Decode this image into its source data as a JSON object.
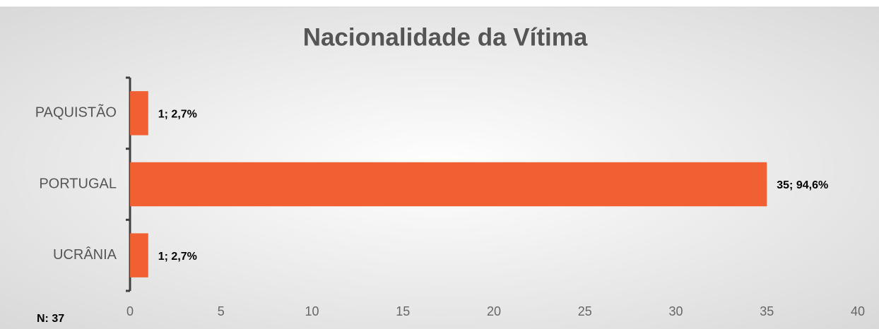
{
  "chart_data": {
    "type": "barh",
    "title": "Nacionalidade da Vítima",
    "categories": [
      "PAQUISTÃO",
      "PORTUGAL",
      "UCRÂNIA"
    ],
    "values": [
      1,
      35,
      1
    ],
    "value_labels": [
      "1; 2,7%",
      "35; 94,6%",
      "1; 2,7%"
    ],
    "color": "#f06032",
    "xlim": [
      0,
      40
    ],
    "xticks": [
      0,
      5,
      10,
      15,
      20,
      25,
      30,
      35,
      40
    ],
    "grid": false,
    "annotation": "N: 37"
  }
}
